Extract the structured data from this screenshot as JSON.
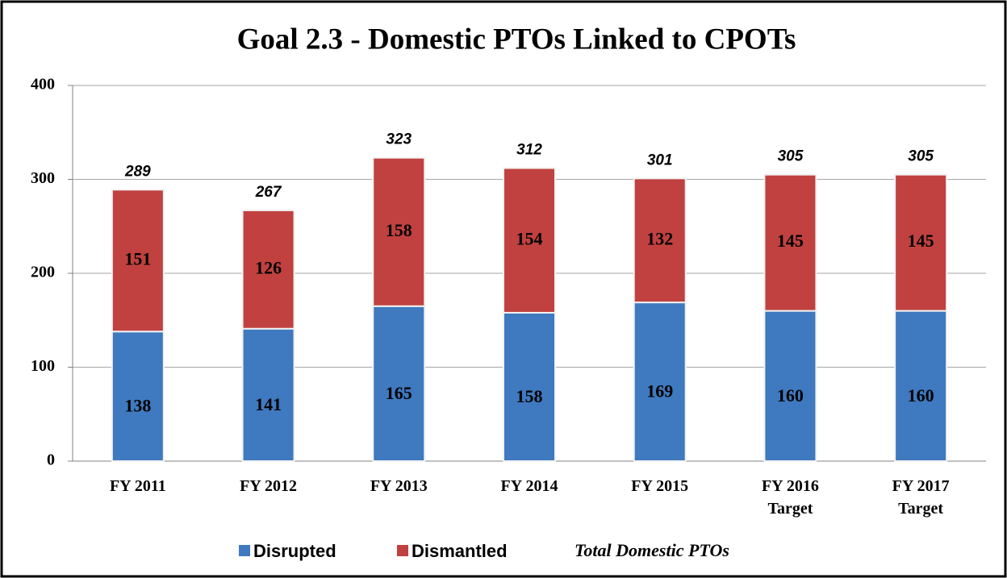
{
  "chart_data": {
    "type": "stacked_bar",
    "title": "Goal 2.3 - Domestic PTOs Linked to CPOTs",
    "categories": [
      "FY 2011",
      "FY 2012",
      "FY 2013",
      "FY 2014",
      "FY 2015",
      "FY 2016 Target",
      "FY 2017 Target"
    ],
    "series": [
      {
        "name": "Disrupted",
        "color": "#3f79bf",
        "values": [
          138,
          141,
          165,
          158,
          169,
          160,
          160
        ]
      },
      {
        "name": "Dismantled",
        "color": "#c0413f",
        "values": [
          151,
          126,
          158,
          154,
          132,
          145,
          145
        ]
      }
    ],
    "totals": {
      "name": "Total Domestic PTOs",
      "values": [
        289,
        267,
        323,
        312,
        301,
        305,
        305
      ]
    },
    "ylim": [
      0,
      400
    ],
    "yticks": [
      0,
      100,
      200,
      300,
      400
    ],
    "grid": true,
    "legend": "bottom"
  }
}
